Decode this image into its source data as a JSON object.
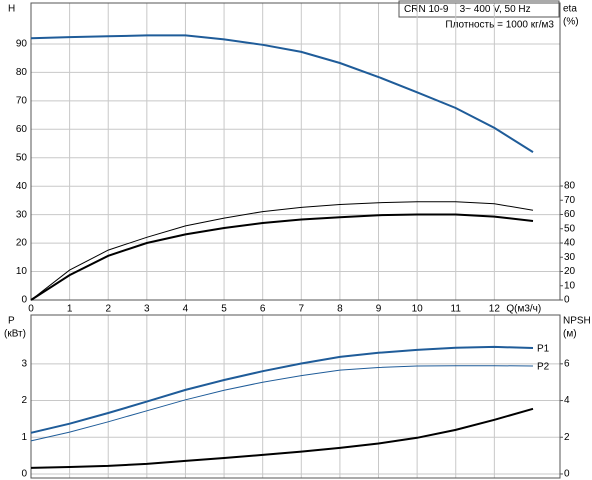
{
  "chart_data": [
    {
      "type": "line",
      "title": "CRN 10-9    3~ 400 V, 50 Hz",
      "subtitle": "Плотность = 1000 кг/м3",
      "ylabel": "H",
      "y2label": "eta",
      "y2unit": "(%)",
      "xlabel": "Q(м3/ч)",
      "x": [
        0,
        1,
        2,
        3,
        4,
        5,
        6,
        7,
        8,
        9,
        10,
        11,
        12,
        13
      ],
      "xlim": [
        0,
        13.7
      ],
      "xticks": [
        0,
        1,
        2,
        3,
        4,
        5,
        6,
        7,
        8,
        9,
        10,
        11,
        12
      ],
      "ylim": [
        0,
        104.4
      ],
      "yticks": [
        0,
        10,
        20,
        30,
        40,
        50,
        60,
        70,
        80,
        90
      ],
      "y2lim": [
        0,
        208.4
      ],
      "y2ticks": [
        0,
        10,
        20,
        30,
        40,
        50,
        60,
        70,
        80
      ],
      "grid": true,
      "series": [
        {
          "color": "#1f5c99",
          "line_width": 2,
          "values": [
            92,
            92.4,
            92.7,
            93,
            93,
            91.6,
            89.7,
            87.2,
            83.3,
            78.4,
            73,
            67.5,
            60.5,
            52
          ]
        },
        {
          "color": "#000000",
          "line_width": 1,
          "axis": "y2",
          "values": [
            0,
            21,
            35,
            44,
            52,
            57.5,
            62,
            65,
            67,
            68.3,
            69,
            69,
            67.5,
            63
          ]
        },
        {
          "color": "#000000",
          "line_width": 2,
          "axis": "y2",
          "values": [
            0,
            17.5,
            31,
            40,
            46,
            50.5,
            54,
            56.5,
            58,
            59.5,
            60,
            60,
            58.5,
            55.4
          ]
        }
      ]
    },
    {
      "type": "line",
      "ylabel": "P",
      "yunit": "(кВт)",
      "y2label": "NPSH",
      "y2unit": "(м)",
      "x": [
        0,
        1,
        2,
        3,
        4,
        5,
        6,
        7,
        8,
        9,
        10,
        11,
        12,
        13
      ],
      "xlim": [
        0,
        13.7
      ],
      "xticks": [
        0,
        1,
        2,
        3,
        4,
        5,
        6,
        7,
        8,
        9,
        10,
        11,
        12
      ],
      "ylim": [
        -0.11,
        4.33
      ],
      "yticks": [
        0,
        1,
        2,
        3
      ],
      "y2lim": [
        -0.22,
        8.66
      ],
      "y2ticks": [
        0,
        2,
        4,
        6
      ],
      "grid": true,
      "series": [
        {
          "name": "P1",
          "color": "#1f5c99",
          "line_width": 2,
          "values": [
            1.12,
            1.37,
            1.66,
            1.97,
            2.29,
            2.56,
            2.8,
            3.01,
            3.19,
            3.3,
            3.38,
            3.44,
            3.46,
            3.43
          ]
        },
        {
          "name": "P2",
          "color": "#1f5c99",
          "line_width": 1,
          "values": [
            0.9,
            1.14,
            1.42,
            1.72,
            2.02,
            2.28,
            2.5,
            2.68,
            2.83,
            2.9,
            2.94,
            2.95,
            2.95,
            2.94
          ]
        },
        {
          "color": "#000000",
          "line_width": 2,
          "axis": "y2",
          "values": [
            0.33,
            0.38,
            0.44,
            0.55,
            0.71,
            0.87,
            1.04,
            1.22,
            1.42,
            1.66,
            1.97,
            2.4,
            2.95,
            3.55
          ]
        }
      ]
    }
  ]
}
